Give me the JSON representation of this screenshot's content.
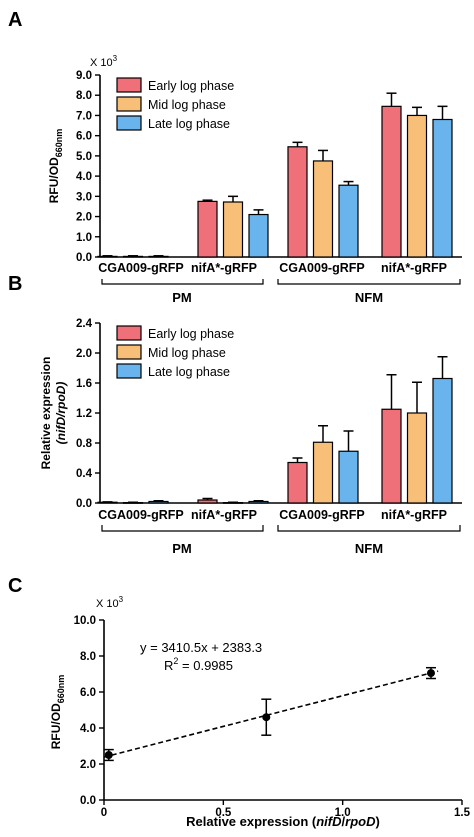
{
  "panels": [
    {
      "letter": "A",
      "multiplier": "X 10",
      "multiplier_exp": "3",
      "ylabel_main": "RFU/OD",
      "ylabel_sub": "660nm",
      "yticks": [
        "0.0",
        "1.0",
        "2.0",
        "3.0",
        "4.0",
        "5.0",
        "6.0",
        "7.0",
        "8.0",
        "9.0"
      ],
      "legend": [
        "Early log phase",
        "Mid log phase",
        "Late log phase"
      ],
      "strains": [
        "CGA009-gRFP",
        "nifA*-gRFP",
        "CGA009-gRFP",
        "nifA*-gRFP"
      ],
      "media": [
        "PM",
        "NFM"
      ]
    },
    {
      "letter": "B",
      "ylabel_line1": "Relative expression",
      "ylabel_line2": "(nifD/rpoD)",
      "yticks": [
        "0.0",
        "0.4",
        "0.8",
        "1.2",
        "1.6",
        "2.0",
        "2.4"
      ],
      "legend": [
        "Early log phase",
        "Mid log phase",
        "Late log phase"
      ],
      "strains": [
        "CGA009-gRFP",
        "nifA*-gRFP",
        "CGA009-gRFP",
        "nifA*-gRFP"
      ],
      "media": [
        "PM",
        "NFM"
      ]
    },
    {
      "letter": "C",
      "multiplier": "X 10",
      "multiplier_exp": "3",
      "ylabel_main": "RFU/OD",
      "ylabel_sub": "660nm",
      "yticks": [
        "0.0",
        "2.0",
        "4.0",
        "6.0",
        "8.0",
        "10.0"
      ],
      "xticks": [
        "0",
        "0.5",
        "1.0",
        "1.5"
      ],
      "xlabel_prefix": "Relative expression (",
      "xlabel_gene1": "nifD",
      "xlabel_sep": "/",
      "xlabel_gene2": "rpoD",
      "xlabel_suffix": ")",
      "equation": "y = 3410.5x + 2383.3",
      "r2_prefix": "R",
      "r2_exp": "2",
      "r2_value": " = 0.9985"
    }
  ],
  "colors": {
    "early": "#f0707a",
    "mid": "#f8bf78",
    "late": "#6ab4ee",
    "axis": "#000000"
  },
  "chart_data": [
    {
      "type": "bar",
      "title": "",
      "ylabel": "RFU/OD660nm (X 10^3)",
      "ylim": [
        0,
        9
      ],
      "categories": [
        "PM CGA009-gRFP",
        "PM nifA*-gRFP",
        "NFM CGA009-gRFP",
        "NFM nifA*-gRFP"
      ],
      "series": [
        {
          "name": "Early log phase",
          "values": [
            0.03,
            2.75,
            5.45,
            7.45
          ],
          "errors": [
            0.03,
            0.06,
            0.22,
            0.65
          ]
        },
        {
          "name": "Mid log phase",
          "values": [
            0.03,
            2.72,
            4.75,
            7.0
          ],
          "errors": [
            0.03,
            0.28,
            0.52,
            0.4
          ]
        },
        {
          "name": "Late log phase",
          "values": [
            0.03,
            2.1,
            3.55,
            6.8
          ],
          "errors": [
            0.03,
            0.23,
            0.18,
            0.65
          ]
        }
      ],
      "legend_position": "top-left",
      "grid": false
    },
    {
      "type": "bar",
      "title": "",
      "ylabel": "Relative expression (nifD/rpoD)",
      "ylim": [
        0,
        2.4
      ],
      "categories": [
        "PM CGA009-gRFP",
        "PM nifA*-gRFP",
        "NFM CGA009-gRFP",
        "NFM nifA*-gRFP"
      ],
      "series": [
        {
          "name": "Early log phase",
          "values": [
            0.01,
            0.04,
            0.54,
            1.25
          ],
          "errors": [
            0.005,
            0.02,
            0.06,
            0.46
          ]
        },
        {
          "name": "Mid log phase",
          "values": [
            0.005,
            0.005,
            0.81,
            1.2
          ],
          "errors": [
            0.005,
            0.005,
            0.22,
            0.41
          ]
        },
        {
          "name": "Late log phase",
          "values": [
            0.02,
            0.02,
            0.69,
            1.66
          ],
          "errors": [
            0.01,
            0.01,
            0.27,
            0.29
          ]
        }
      ],
      "legend_position": "top-left",
      "grid": false
    },
    {
      "type": "scatter",
      "title": "",
      "xlabel": "Relative expression (nifD/rpoD)",
      "ylabel": "RFU/OD660nm (X 10^3)",
      "xlim": [
        0,
        1.5
      ],
      "ylim": [
        0,
        10
      ],
      "points": [
        {
          "x": 0.02,
          "y": 2.5,
          "yerr": 0.3
        },
        {
          "x": 0.68,
          "y": 4.6,
          "yerr": 1.0
        },
        {
          "x": 1.37,
          "y": 7.05,
          "yerr": 0.3
        }
      ],
      "fit": {
        "slope": 3410.5,
        "intercept": 2383.3,
        "r2": 0.9985,
        "x_range": [
          0,
          1.4
        ]
      },
      "grid": false
    }
  ]
}
